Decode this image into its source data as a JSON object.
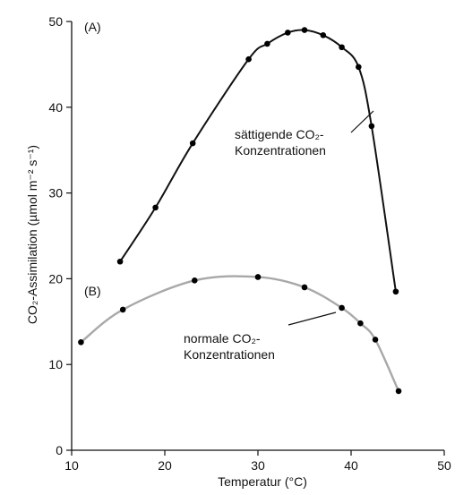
{
  "chart_data": {
    "type": "line",
    "xlabel": "Temperatur (°C)",
    "ylabel": "CO₂-Assimilation (µmol m⁻² s⁻¹)",
    "xlim": [
      10,
      50
    ],
    "ylim": [
      0,
      50
    ],
    "xticks": [
      10,
      20,
      30,
      40,
      50
    ],
    "yticks": [
      0,
      10,
      20,
      30,
      40,
      50
    ],
    "grid": false,
    "series": [
      {
        "name": "sättigende CO₂-Konzentrationen",
        "panel": "(A)",
        "color": "#111111",
        "label_lines": [
          "sättigende CO₂-",
          "Konzentrationen"
        ],
        "x": [
          15.2,
          19,
          23,
          29,
          31,
          33.2,
          35,
          37,
          39,
          40.8,
          42.2,
          44.8
        ],
        "y": [
          22,
          28.3,
          35.8,
          45.6,
          47.4,
          48.7,
          49,
          48.4,
          47,
          44.7,
          37.8,
          18.5
        ]
      },
      {
        "name": "normale CO₂-Konzentrationen",
        "panel": "(B)",
        "color": "#a8a8a8",
        "label_lines": [
          "normale CO₂-",
          "Konzentrationen"
        ],
        "x": [
          11,
          15.5,
          23.2,
          30,
          35,
          39,
          41,
          42.6,
          45.1
        ],
        "y": [
          12.6,
          16.4,
          19.8,
          20.2,
          19,
          16.6,
          14.8,
          12.9,
          6.9
        ]
      }
    ]
  }
}
